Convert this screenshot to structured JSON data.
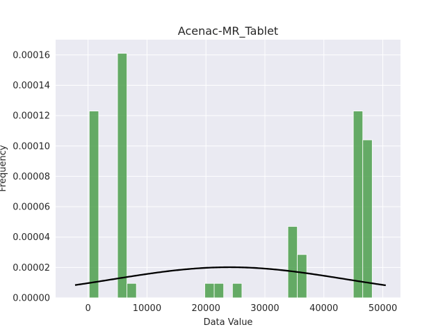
{
  "chart_data": {
    "type": "bar",
    "title": "Acenac-MR_Tablet",
    "xlabel": "Data Value",
    "ylabel": "Frequency",
    "xlim": [
      -5500,
      53000
    ],
    "ylim": [
      0,
      0.00017
    ],
    "x_ticks": [
      0,
      10000,
      20000,
      30000,
      40000,
      50000
    ],
    "y_ticks": [
      0,
      2e-05,
      4e-05,
      6e-05,
      8e-05,
      0.0001,
      0.00012,
      0.00014,
      0.00016
    ],
    "x_tick_labels": [
      "0",
      "10000",
      "20000",
      "30000",
      "40000",
      "50000"
    ],
    "y_tick_labels": [
      "0.00000",
      "0.00002",
      "0.00004",
      "0.00006",
      "0.00008",
      "0.00010",
      "0.00012",
      "0.00014",
      "0.00016"
    ],
    "grid": true,
    "bar_color": "#4c9f4c",
    "curve_color": "#000000",
    "background_color": "#eaeaf2",
    "bins": [
      {
        "x0": 200,
        "x1": 1800,
        "value": 0.000123
      },
      {
        "x0": 5000,
        "x1": 6600,
        "value": 0.000161
      },
      {
        "x0": 6600,
        "x1": 8200,
        "value": 9.5e-06
      },
      {
        "x0": 19800,
        "x1": 21400,
        "value": 9.5e-06
      },
      {
        "x0": 21400,
        "x1": 23000,
        "value": 9.5e-06
      },
      {
        "x0": 24500,
        "x1": 26100,
        "value": 9.5e-06
      },
      {
        "x0": 33900,
        "x1": 35500,
        "value": 4.7e-05
      },
      {
        "x0": 35500,
        "x1": 37100,
        "value": 2.85e-05
      },
      {
        "x0": 45000,
        "x1": 46600,
        "value": 0.000123
      },
      {
        "x0": 46600,
        "x1": 48200,
        "value": 0.000104
      }
    ],
    "curve": {
      "type": "normal_pdf",
      "mean": 24000,
      "std": 19800,
      "x_range": [
        -2200,
        50500
      ]
    }
  }
}
